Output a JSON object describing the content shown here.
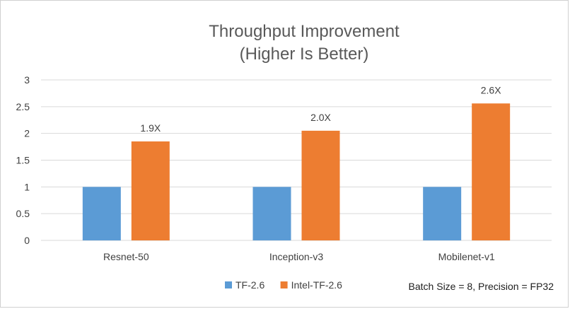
{
  "chart_data": {
    "type": "bar",
    "title": "Throughput Improvement",
    "subtitle": "(Higher Is Better)",
    "categories": [
      "Resnet-50",
      "Inception-v3",
      "Mobilenet-v1"
    ],
    "series": [
      {
        "name": "TF-2.6",
        "color": "#5b9bd5",
        "values": [
          1,
          1,
          1
        ]
      },
      {
        "name": "Intel-TF-2.6",
        "color": "#ed7d31",
        "values": [
          1.85,
          2.05,
          2.56
        ],
        "data_labels": [
          "1.9X",
          "2.0X",
          "2.6X"
        ]
      }
    ],
    "ylim": [
      0,
      3
    ],
    "yticks": [
      "0",
      "0.5",
      "1",
      "1.5",
      "2",
      "2.5",
      "3"
    ],
    "grid": true,
    "legend_position": "bottom",
    "note": "Batch Size = 8, Precision = FP32"
  }
}
